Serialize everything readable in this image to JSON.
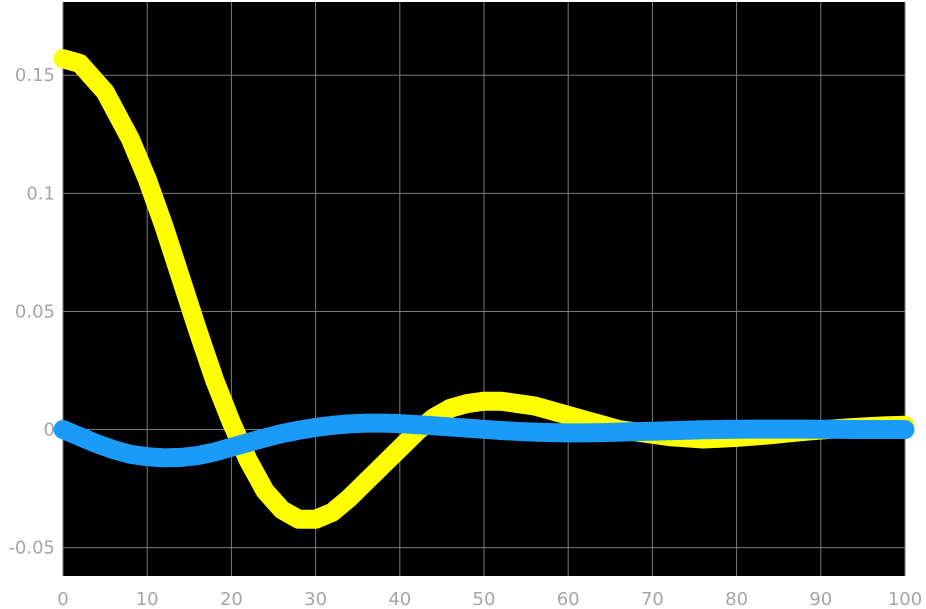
{
  "chart_data": {
    "type": "line",
    "title": "",
    "xlabel": "",
    "ylabel": "",
    "xlim": [
      0,
      100
    ],
    "ylim": [
      -0.062,
      0.181
    ],
    "grid": true,
    "background": "#000000",
    "x_ticks": [
      0,
      10,
      20,
      30,
      40,
      50,
      60,
      70,
      80,
      90,
      100
    ],
    "x_tick_labels": [
      "0",
      "10",
      "20",
      "30",
      "40",
      "50",
      "60",
      "70",
      "80",
      "90",
      "100"
    ],
    "y_ticks": [
      -0.05,
      0,
      0.05,
      0.1,
      0.15
    ],
    "y_tick_labels": [
      "-0.05",
      "0",
      "0.05",
      "0.1",
      "0.15"
    ],
    "series": [
      {
        "color": "#ffff00",
        "x": [
          0,
          2,
          5,
          8,
          10,
          12,
          14,
          16,
          18,
          20,
          22,
          24,
          26,
          28,
          30,
          32,
          34,
          36,
          38,
          40,
          42,
          44,
          46,
          48,
          50,
          52,
          54,
          56,
          58,
          60,
          62,
          64,
          66,
          68,
          70,
          72,
          74,
          76,
          78,
          80,
          82,
          84,
          86,
          88,
          90,
          92,
          94,
          96,
          98,
          100
        ],
        "y": [
          0.157,
          0.155,
          0.143,
          0.123,
          0.106,
          0.086,
          0.064,
          0.042,
          0.021,
          0.003,
          -0.013,
          -0.026,
          -0.034,
          -0.038,
          -0.038,
          -0.035,
          -0.029,
          -0.022,
          -0.015,
          -0.008,
          -0.001,
          0.005,
          0.009,
          0.011,
          0.012,
          0.012,
          0.011,
          0.01,
          0.008,
          0.006,
          0.004,
          0.002,
          0.0,
          -0.001,
          -0.002,
          -0.003,
          -0.0035,
          -0.004,
          -0.0037,
          -0.0033,
          -0.0028,
          -0.0022,
          -0.0015,
          -0.0008,
          -0.0002,
          0.0004,
          0.0009,
          0.0013,
          0.0016,
          0.0018
        ]
      },
      {
        "color": "#1a9bfa",
        "x": [
          0,
          2,
          4,
          6,
          8,
          10,
          12,
          14,
          16,
          18,
          20,
          22,
          24,
          26,
          28,
          30,
          32,
          34,
          36,
          38,
          40,
          42,
          44,
          46,
          48,
          50,
          52,
          54,
          56,
          58,
          60,
          62,
          64,
          66,
          68,
          70,
          72,
          74,
          76,
          78,
          80,
          82,
          84,
          86,
          88,
          90,
          92,
          94,
          96,
          98,
          100
        ],
        "y": [
          0.0,
          -0.003,
          -0.006,
          -0.0085,
          -0.0105,
          -0.0115,
          -0.012,
          -0.0118,
          -0.011,
          -0.0095,
          -0.0075,
          -0.0055,
          -0.0035,
          -0.0017,
          -0.0003,
          0.0009,
          0.0018,
          0.0024,
          0.0027,
          0.0027,
          0.0025,
          0.0021,
          0.0016,
          0.0011,
          0.0006,
          0.0001,
          -0.0004,
          -0.0008,
          -0.0011,
          -0.0013,
          -0.0014,
          -0.0014,
          -0.0013,
          -0.0011,
          -0.0009,
          -0.0007,
          -0.0005,
          -0.0003,
          -0.0001,
          0.0,
          0.0001,
          0.0002,
          0.0002,
          0.0002,
          0.0002,
          0.0001,
          0.0001,
          0.0,
          0.0,
          0.0,
          0.0
        ]
      }
    ]
  }
}
